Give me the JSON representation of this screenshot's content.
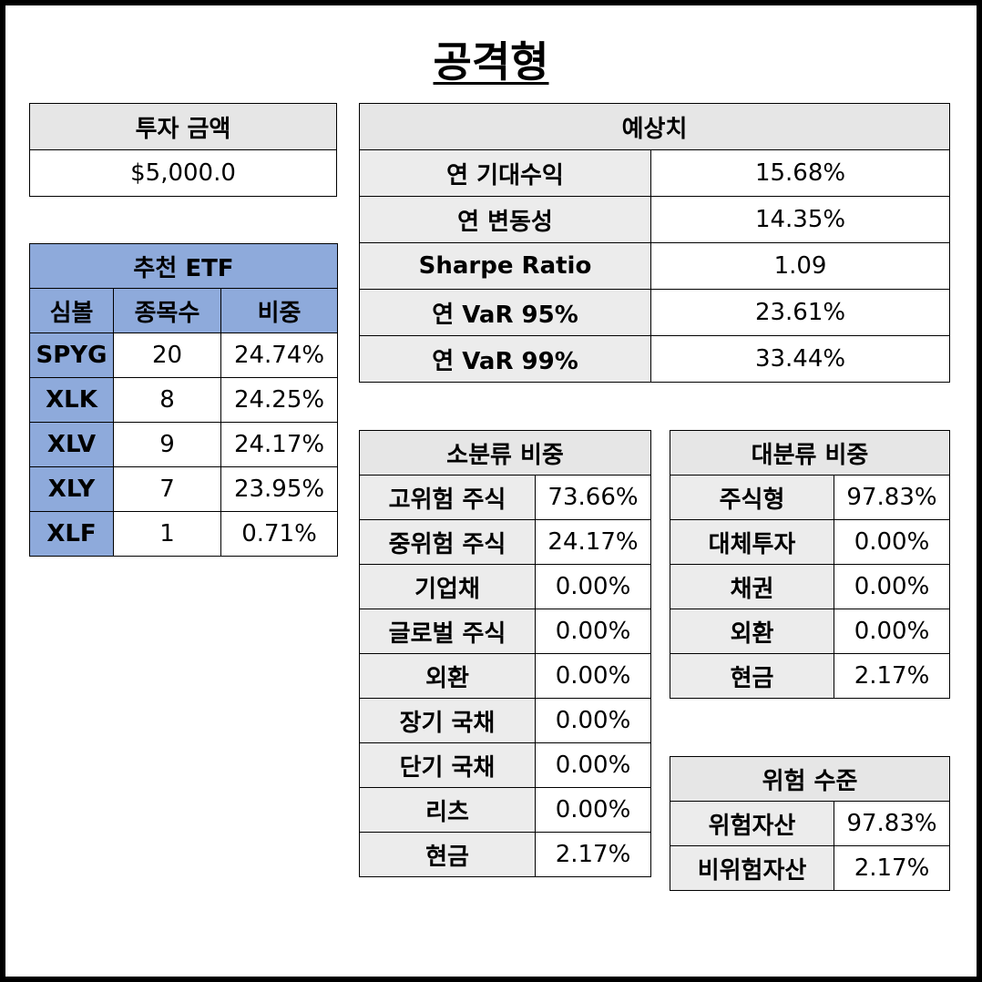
{
  "title": "공격형",
  "investment": {
    "header": "투자 금액",
    "amount": "$5,000.0"
  },
  "expected": {
    "header": "예상치",
    "rows": [
      {
        "label": "연 기대수익",
        "value": "15.68%"
      },
      {
        "label": "연 변동성",
        "value": "14.35%"
      },
      {
        "label": "Sharpe Ratio",
        "value": "1.09"
      },
      {
        "label": "연 VaR 95%",
        "value": "23.61%"
      },
      {
        "label": "연 VaR 99%",
        "value": "33.44%"
      }
    ]
  },
  "etf": {
    "header": "추천 ETF",
    "columns": [
      "심볼",
      "종목수",
      "비중"
    ],
    "rows": [
      {
        "symbol": "SPYG",
        "count": "20",
        "weight": "24.74%"
      },
      {
        "symbol": "XLK",
        "count": "8",
        "weight": "24.25%"
      },
      {
        "symbol": "XLV",
        "count": "9",
        "weight": "24.17%"
      },
      {
        "symbol": "XLY",
        "count": "7",
        "weight": "23.95%"
      },
      {
        "symbol": "XLF",
        "count": "1",
        "weight": "0.71%"
      }
    ]
  },
  "sub_class": {
    "header": "소분류 비중",
    "rows": [
      {
        "label": "고위험 주식",
        "value": "73.66%"
      },
      {
        "label": "중위험 주식",
        "value": "24.17%"
      },
      {
        "label": "기업채",
        "value": "0.00%"
      },
      {
        "label": "글로벌 주식",
        "value": "0.00%"
      },
      {
        "label": "외환",
        "value": "0.00%"
      },
      {
        "label": "장기 국채",
        "value": "0.00%"
      },
      {
        "label": "단기 국채",
        "value": "0.00%"
      },
      {
        "label": "리츠",
        "value": "0.00%"
      },
      {
        "label": "현금",
        "value": "2.17%"
      }
    ]
  },
  "major_class": {
    "header": "대분류 비중",
    "rows": [
      {
        "label": "주식형",
        "value": "97.83%"
      },
      {
        "label": "대체투자",
        "value": "0.00%"
      },
      {
        "label": "채권",
        "value": "0.00%"
      },
      {
        "label": "외환",
        "value": "0.00%"
      },
      {
        "label": "현금",
        "value": "2.17%"
      }
    ]
  },
  "risk": {
    "header": "위험 수준",
    "rows": [
      {
        "label": "위험자산",
        "value": "97.83%"
      },
      {
        "label": "비위험자산",
        "value": "2.17%"
      }
    ]
  },
  "colors": {
    "header_gray": "#e6e6e6",
    "etf_blue": "#8eaadb",
    "border": "#000000"
  }
}
